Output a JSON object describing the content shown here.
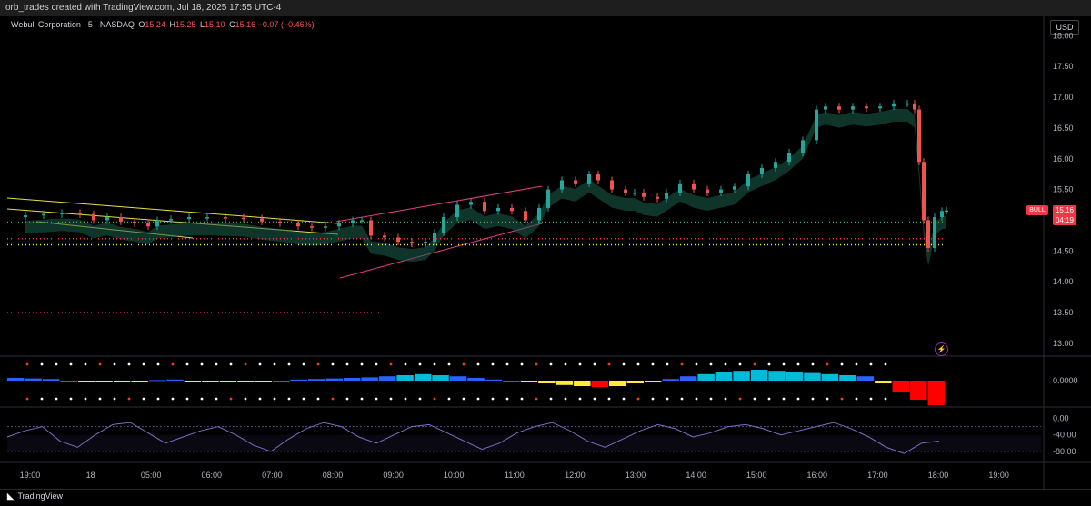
{
  "header": {
    "attribution": "orb_trades created with TradingView.com, Jul 18, 2025 17:55 UTC-4"
  },
  "legend": {
    "title": "Webull Corporation · 5 · NASDAQ",
    "o_label": "O",
    "o": "15.24",
    "h_label": "H",
    "h": "15.25",
    "l_label": "L",
    "l": "15.10",
    "c_label": "C",
    "c": "15.16",
    "change": "−0.07 (−0.46%)"
  },
  "currency": "USD",
  "last_price": {
    "value": "15.16",
    "countdown": "04:19",
    "badge": "BULL"
  },
  "footer": {
    "brand": "TradingView"
  },
  "colors": {
    "up": "#26a69a",
    "down": "#ef5350",
    "cloud_up": "#1b5e4a",
    "cloud_down": "#5a1a1a",
    "trend_line": "#e6e04a",
    "channel": "#e83e8c",
    "osc": "#7e6cc8"
  },
  "chart_data": [
    {
      "type": "candlestick",
      "title": "Webull Corporation · 5 · NASDAQ",
      "ylim": [
        12.85,
        18.05
      ],
      "y_ticks": [
        "18.00",
        "17.50",
        "17.00",
        "16.50",
        "16.00",
        "15.50",
        "15.00",
        "14.50",
        "14.00",
        "13.50",
        "13.00"
      ],
      "x_ticks": [
        "19:00",
        "18",
        "05:00",
        "06:00",
        "07:00",
        "08:00",
        "09:00",
        "10:00",
        "11:00",
        "12:00",
        "13:00",
        "14:00",
        "15:00",
        "16:00",
        "17:00",
        "18:00",
        "19:00"
      ],
      "price_path": [
        [
          0,
          15.05
        ],
        [
          20,
          15.08
        ],
        [
          40,
          15.1
        ],
        [
          60,
          15.12
        ],
        [
          80,
          15.1
        ],
        [
          95,
          15.0
        ],
        [
          110,
          15.05
        ],
        [
          125,
          14.98
        ],
        [
          140,
          14.95
        ],
        [
          155,
          14.9
        ],
        [
          165,
          15.0
        ],
        [
          180,
          15.02
        ],
        [
          200,
          15.05
        ],
        [
          220,
          15.05
        ],
        [
          240,
          15.04
        ],
        [
          260,
          15.03
        ],
        [
          280,
          14.98
        ],
        [
          300,
          14.95
        ],
        [
          320,
          14.9
        ],
        [
          335,
          14.88
        ],
        [
          350,
          14.9
        ],
        [
          365,
          14.95
        ],
        [
          380,
          15.0
        ],
        [
          390,
          15.0
        ],
        [
          400,
          14.75
        ],
        [
          415,
          14.72
        ],
        [
          430,
          14.65
        ],
        [
          445,
          14.62
        ],
        [
          460,
          14.65
        ],
        [
          470,
          14.8
        ],
        [
          480,
          15.05
        ],
        [
          495,
          15.25
        ],
        [
          510,
          15.3
        ],
        [
          525,
          15.15
        ],
        [
          540,
          15.2
        ],
        [
          555,
          15.15
        ],
        [
          570,
          15.0
        ],
        [
          585,
          15.2
        ],
        [
          595,
          15.5
        ],
        [
          610,
          15.65
        ],
        [
          625,
          15.6
        ],
        [
          640,
          15.75
        ],
        [
          650,
          15.65
        ],
        [
          665,
          15.5
        ],
        [
          680,
          15.45
        ],
        [
          690,
          15.45
        ],
        [
          700,
          15.38
        ],
        [
          715,
          15.35
        ],
        [
          725,
          15.45
        ],
        [
          740,
          15.6
        ],
        [
          755,
          15.5
        ],
        [
          770,
          15.45
        ],
        [
          785,
          15.5
        ],
        [
          800,
          15.55
        ],
        [
          815,
          15.75
        ],
        [
          830,
          15.85
        ],
        [
          845,
          15.95
        ],
        [
          860,
          16.1
        ],
        [
          875,
          16.3
        ],
        [
          890,
          16.8
        ],
        [
          900,
          16.85
        ],
        [
          915,
          16.8
        ],
        [
          930,
          16.85
        ],
        [
          945,
          16.82
        ],
        [
          960,
          16.85
        ],
        [
          975,
          16.9
        ],
        [
          990,
          16.9
        ],
        [
          998,
          16.8
        ],
        [
          1003,
          15.95
        ],
        [
          1008,
          15.0
        ],
        [
          1013,
          14.55
        ],
        [
          1020,
          15.05
        ],
        [
          1028,
          15.15
        ],
        [
          1033,
          15.16
        ]
      ],
      "levels": [
        14.97,
        14.7,
        14.6,
        13.5
      ]
    },
    {
      "type": "histogram",
      "title": "",
      "y_ticks": [
        "0.0000"
      ],
      "values": [
        0.05,
        0.04,
        0.03,
        0.0,
        -0.02,
        -0.03,
        -0.02,
        -0.01,
        0.01,
        0.02,
        -0.01,
        -0.02,
        -0.03,
        -0.02,
        -0.01,
        0.0,
        0.02,
        0.03,
        0.04,
        0.05,
        0.06,
        0.08,
        0.1,
        0.12,
        0.1,
        0.08,
        0.05,
        0.02,
        0.0,
        -0.02,
        -0.05,
        -0.08,
        -0.1,
        -0.12,
        -0.1,
        -0.05,
        -0.02,
        0.03,
        0.08,
        0.12,
        0.15,
        0.18,
        0.2,
        0.18,
        0.16,
        0.14,
        0.12,
        0.1,
        0.08,
        -0.05,
        -0.2,
        -0.35,
        -0.45
      ]
    },
    {
      "type": "line",
      "title": "",
      "ylim": [
        -100,
        10
      ],
      "y_ticks": [
        "0.00",
        "-40.00",
        "-80.00"
      ],
      "values": [
        -45,
        -30,
        -20,
        -55,
        -70,
        -40,
        -15,
        -10,
        -35,
        -60,
        -45,
        -30,
        -20,
        -40,
        -65,
        -80,
        -50,
        -25,
        -10,
        -20,
        -45,
        -60,
        -40,
        -20,
        -15,
        -35,
        -55,
        -75,
        -60,
        -35,
        -20,
        -10,
        -30,
        -55,
        -70,
        -50,
        -30,
        -15,
        -25,
        -45,
        -35,
        -20,
        -15,
        -25,
        -40,
        -30,
        -20,
        -10,
        -25,
        -45,
        -70,
        -85,
        -60,
        -55
      ]
    }
  ]
}
